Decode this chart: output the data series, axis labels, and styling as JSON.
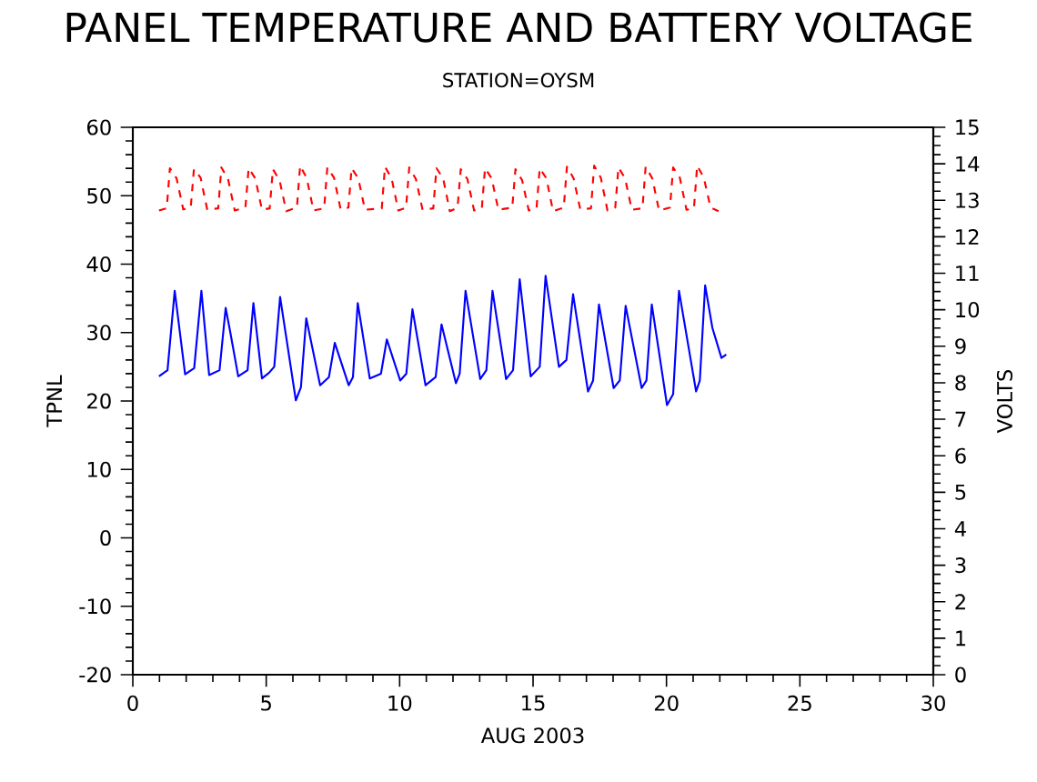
{
  "chart_data": {
    "type": "line",
    "title": "PANEL TEMPERATURE AND BATTERY VOLTAGE",
    "subtitle": "STATION=OYSM",
    "xlabel": "AUG 2003",
    "ylabel": "TPNL",
    "y2label": "VOLTS",
    "xlim": [
      0,
      30
    ],
    "xticks": [
      0,
      5,
      10,
      15,
      20,
      25,
      30
    ],
    "ylim": [
      -20,
      60
    ],
    "yticks": [
      -20,
      -10,
      0,
      10,
      20,
      30,
      40,
      50,
      60
    ],
    "y2lim": [
      0,
      15
    ],
    "y2ticks": [
      0,
      1,
      2,
      3,
      4,
      5,
      6,
      7,
      8,
      9,
      10,
      11,
      12,
      13,
      14,
      15
    ],
    "series": [
      {
        "color": "#0000ff",
        "line_style": "solid",
        "axis": "y",
        "x": [
          0.98,
          1.3,
          1.57,
          1.96,
          2.3,
          2.57,
          2.86,
          3.25,
          3.48,
          3.66,
          3.95,
          4.3,
          4.52,
          4.84,
          5.1,
          5.3,
          5.52,
          6.11,
          6.3,
          6.5,
          7.02,
          7.35,
          7.57,
          8.09,
          8.25,
          8.43,
          8.88,
          9.3,
          9.52,
          10.02,
          10.25,
          10.48,
          10.97,
          11.35,
          11.57,
          12.11,
          12.25,
          12.47,
          13.02,
          13.25,
          13.48,
          13.99,
          14.25,
          14.5,
          14.91,
          15.25,
          15.47,
          15.97,
          16.25,
          16.5,
          17.06,
          17.25,
          17.47,
          18.02,
          18.25,
          18.47,
          19.07,
          19.25,
          19.45,
          20.02,
          20.25,
          20.47,
          21.11,
          21.25,
          21.45,
          21.72,
          22.06,
          22.24
        ],
        "values": [
          23.6,
          24.5,
          36.1,
          23.9,
          24.8,
          36.1,
          23.8,
          24.5,
          33.6,
          29.9,
          23.6,
          24.5,
          34.3,
          23.3,
          24.1,
          25.0,
          35.2,
          20.1,
          22.0,
          32.1,
          22.3,
          23.5,
          28.5,
          22.3,
          23.5,
          34.3,
          23.3,
          24.0,
          29.0,
          23.0,
          24.0,
          33.4,
          22.3,
          23.5,
          31.2,
          22.6,
          24.0,
          36.1,
          23.2,
          24.5,
          36.1,
          23.2,
          24.5,
          37.8,
          23.6,
          25.0,
          38.3,
          25.0,
          26.0,
          35.6,
          21.4,
          23.0,
          34.1,
          21.9,
          23.0,
          33.9,
          21.9,
          23.0,
          34.1,
          19.4,
          21.0,
          36.1,
          21.4,
          23.0,
          36.9,
          30.7,
          26.3,
          26.8
        ]
      },
      {
        "color": "#ff0000",
        "line_style": "dashed",
        "axis": "y2",
        "x": [
          0.98,
          1.27,
          1.39,
          1.64,
          1.89,
          2.17,
          2.29,
          2.54,
          2.79,
          3.2,
          3.32,
          3.57,
          3.82,
          4.22,
          4.34,
          4.59,
          4.84,
          5.13,
          5.25,
          5.5,
          5.75,
          6.15,
          6.27,
          6.52,
          6.77,
          7.17,
          7.29,
          7.54,
          7.79,
          8.08,
          8.2,
          8.45,
          8.7,
          9.33,
          9.45,
          9.7,
          9.95,
          10.24,
          10.36,
          10.61,
          10.86,
          11.26,
          11.38,
          11.63,
          11.88,
          12.17,
          12.29,
          12.54,
          12.79,
          13.08,
          13.2,
          13.45,
          13.7,
          14.22,
          14.34,
          14.59,
          14.84,
          15.13,
          15.25,
          15.5,
          15.75,
          16.15,
          16.27,
          16.52,
          16.77,
          17.17,
          17.29,
          17.54,
          17.79,
          18.08,
          18.2,
          18.45,
          18.7,
          19.1,
          19.22,
          19.47,
          19.72,
          20.13,
          20.25,
          20.5,
          20.75,
          21.03,
          21.15,
          21.4,
          21.65,
          21.95
        ],
        "values": [
          12.72,
          12.78,
          13.88,
          13.6,
          12.75,
          12.8,
          13.85,
          13.62,
          12.74,
          12.78,
          13.9,
          13.58,
          12.72,
          12.8,
          13.88,
          13.6,
          12.74,
          12.78,
          13.85,
          13.55,
          12.7,
          12.8,
          13.95,
          13.6,
          12.72,
          12.78,
          13.9,
          13.62,
          12.75,
          12.8,
          13.88,
          13.6,
          12.74,
          12.78,
          13.92,
          13.6,
          12.72,
          12.8,
          13.9,
          13.58,
          12.74,
          12.78,
          13.88,
          13.6,
          12.7,
          12.8,
          13.85,
          13.58,
          12.72,
          12.78,
          13.88,
          13.6,
          12.74,
          12.8,
          13.85,
          13.55,
          12.72,
          12.78,
          13.88,
          13.6,
          12.7,
          12.8,
          13.92,
          13.6,
          12.75,
          12.78,
          13.95,
          13.62,
          12.72,
          12.8,
          13.9,
          13.6,
          12.74,
          12.78,
          13.92,
          13.6,
          12.72,
          12.8,
          13.9,
          13.62,
          12.74,
          12.78,
          13.95,
          13.62,
          12.8,
          12.7
        ]
      }
    ]
  }
}
